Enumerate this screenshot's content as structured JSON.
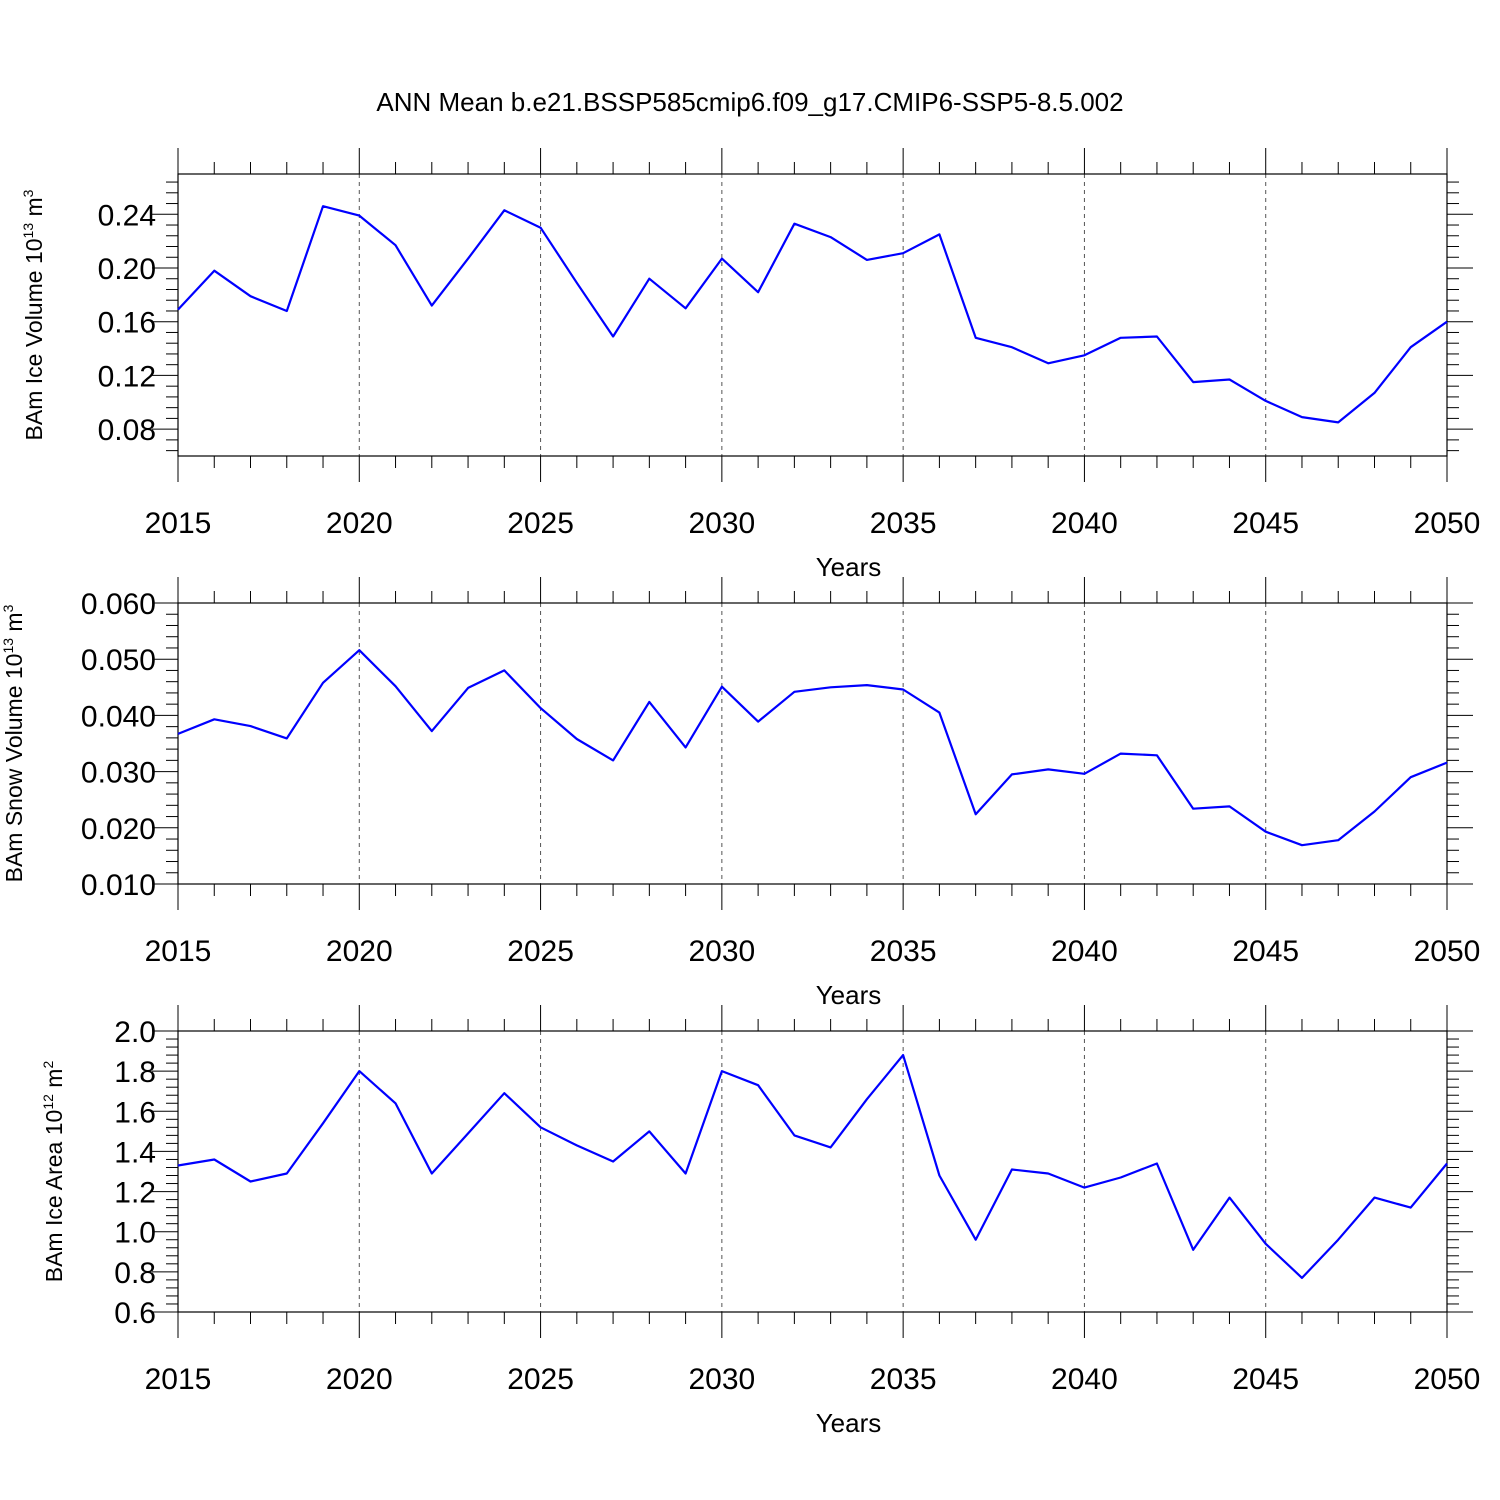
{
  "title": "ANN Mean b.e21.BSSP585cmip6.f09_g17.CMIP6-SSP5-8.5.002",
  "colors": {
    "line": "#0000ff",
    "frame": "#000000"
  },
  "chart_data": [
    {
      "type": "line",
      "xlabel": "Years",
      "ylabel_main": "BAm Ice Volume 10",
      "ylabel_exp": "13",
      "ylabel_unit": " m",
      "ylabel_unit_exp": "3",
      "xlim": [
        2015,
        2050
      ],
      "ylim": [
        0.06,
        0.27
      ],
      "xticks": [
        2015,
        2020,
        2025,
        2030,
        2035,
        2040,
        2045,
        2050
      ],
      "yticks": [
        0.08,
        0.12,
        0.16,
        0.2,
        0.24
      ],
      "ytick_labels": [
        "0.08",
        "0.12",
        "0.16",
        "0.20",
        "0.24"
      ],
      "grid": "vertical dashed at major x ticks",
      "x": [
        2015,
        2016,
        2017,
        2018,
        2019,
        2020,
        2021,
        2022,
        2023,
        2024,
        2025,
        2026,
        2027,
        2028,
        2029,
        2030,
        2031,
        2032,
        2033,
        2034,
        2035,
        2036,
        2037,
        2038,
        2039,
        2040,
        2041,
        2042,
        2043,
        2044,
        2045,
        2046,
        2047,
        2048,
        2049,
        2050
      ],
      "series": [
        {
          "values": [
            0.169,
            0.198,
            0.179,
            0.168,
            0.246,
            0.239,
            0.217,
            0.172,
            0.207,
            0.243,
            0.23,
            0.189,
            0.149,
            0.192,
            0.17,
            0.207,
            0.182,
            0.233,
            0.223,
            0.206,
            0.211,
            0.225,
            0.148,
            0.141,
            0.129,
            0.135,
            0.148,
            0.149,
            0.115,
            0.117,
            0.101,
            0.089,
            0.085,
            0.107,
            0.141,
            0.16
          ]
        }
      ]
    },
    {
      "type": "line",
      "xlabel": "Years",
      "ylabel_main": "BAm Snow Volume 10",
      "ylabel_exp": "13",
      "ylabel_unit": " m",
      "ylabel_unit_exp": "3",
      "xlim": [
        2015,
        2050
      ],
      "ylim": [
        0.01,
        0.06
      ],
      "xticks": [
        2015,
        2020,
        2025,
        2030,
        2035,
        2040,
        2045,
        2050
      ],
      "yticks": [
        0.01,
        0.02,
        0.03,
        0.04,
        0.05,
        0.06
      ],
      "ytick_labels": [
        "0.010",
        "0.020",
        "0.030",
        "0.040",
        "0.050",
        "0.060"
      ],
      "grid": "vertical dashed at major x ticks",
      "x": [
        2015,
        2016,
        2017,
        2018,
        2019,
        2020,
        2021,
        2022,
        2023,
        2024,
        2025,
        2026,
        2027,
        2028,
        2029,
        2030,
        2031,
        2032,
        2033,
        2034,
        2035,
        2036,
        2037,
        2038,
        2039,
        2040,
        2041,
        2042,
        2043,
        2044,
        2045,
        2046,
        2047,
        2048,
        2049,
        2050
      ],
      "series": [
        {
          "values": [
            0.0367,
            0.0393,
            0.0381,
            0.0359,
            0.0458,
            0.0516,
            0.0452,
            0.0372,
            0.0449,
            0.048,
            0.0413,
            0.0358,
            0.032,
            0.0424,
            0.0343,
            0.0451,
            0.0389,
            0.0442,
            0.045,
            0.0454,
            0.0446,
            0.0405,
            0.0224,
            0.0295,
            0.0304,
            0.0296,
            0.0332,
            0.0329,
            0.0234,
            0.0238,
            0.0193,
            0.0169,
            0.0178,
            0.0229,
            0.029,
            0.0316
          ]
        }
      ]
    },
    {
      "type": "line",
      "xlabel": "Years",
      "ylabel_main": "BAm Ice Area 10",
      "ylabel_exp": "12",
      "ylabel_unit": " m",
      "ylabel_unit_exp": "2",
      "xlim": [
        2015,
        2050
      ],
      "ylim": [
        0.6,
        2.0
      ],
      "xticks": [
        2015,
        2020,
        2025,
        2030,
        2035,
        2040,
        2045,
        2050
      ],
      "yticks": [
        0.6,
        0.8,
        1.0,
        1.2,
        1.4,
        1.6,
        1.8,
        2.0
      ],
      "ytick_labels": [
        "0.6",
        "0.8",
        "1.0",
        "1.2",
        "1.4",
        "1.6",
        "1.8",
        "2.0"
      ],
      "grid": "vertical dashed at major x ticks",
      "x": [
        2015,
        2016,
        2017,
        2018,
        2019,
        2020,
        2021,
        2022,
        2023,
        2024,
        2025,
        2026,
        2027,
        2028,
        2029,
        2030,
        2031,
        2032,
        2033,
        2034,
        2035,
        2036,
        2037,
        2038,
        2039,
        2040,
        2041,
        2042,
        2043,
        2044,
        2045,
        2046,
        2047,
        2048,
        2049,
        2050
      ],
      "series": [
        {
          "values": [
            1.33,
            1.36,
            1.25,
            1.29,
            1.54,
            1.8,
            1.64,
            1.29,
            1.49,
            1.69,
            1.52,
            1.43,
            1.35,
            1.5,
            1.29,
            1.8,
            1.73,
            1.48,
            1.42,
            1.66,
            1.88,
            1.28,
            0.96,
            1.31,
            1.29,
            1.22,
            1.27,
            1.34,
            0.91,
            1.17,
            0.94,
            0.77,
            0.96,
            1.17,
            1.12,
            1.34
          ]
        }
      ]
    }
  ]
}
